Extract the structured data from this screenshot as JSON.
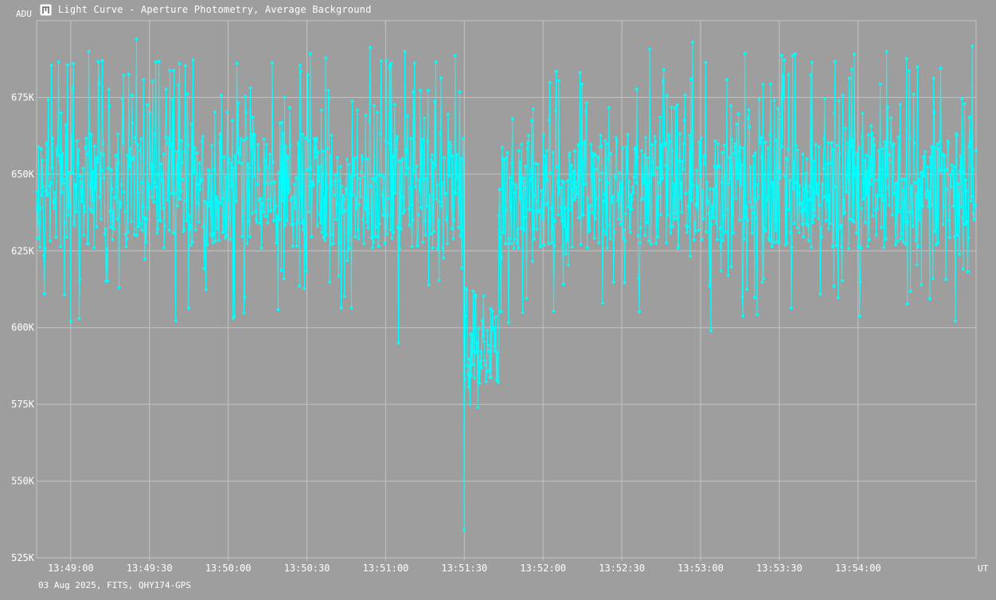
{
  "window": {
    "title": "Light Curve - Aperture Photometry, Average Background",
    "app_icon": "light-curve-icon",
    "footer": "03 Aug 2025, FITS, QHY174-GPS"
  },
  "colors": {
    "background": "#9e9e9e",
    "grid": "#c4c4c4",
    "series": "#00ffff",
    "text": "#ffffff"
  },
  "chart_data": {
    "type": "line",
    "title": "Light Curve - Aperture Photometry, Average Background",
    "ylabel": "ADU",
    "xlabel": "UT",
    "ylim": [
      525000,
      700000
    ],
    "xlim": [
      "13:48:47",
      "13:54:45"
    ],
    "x_ticks": [
      "13:49:00",
      "13:49:30",
      "13:50:00",
      "13:50:30",
      "13:51:00",
      "13:51:30",
      "13:52:00",
      "13:52:30",
      "13:53:00",
      "13:53:30",
      "13:54:00"
    ],
    "y_ticks": [
      "525K",
      "550K",
      "575K",
      "600K",
      "625K",
      "650K",
      "675K"
    ],
    "y_tick_values": [
      525000,
      550000,
      575000,
      600000,
      625000,
      650000,
      675000
    ],
    "grid": true,
    "series": [
      {
        "markers": true,
        "baseline_mean": 645000,
        "scatter_range": [
          600000,
          694000
        ],
        "dip": {
          "start": "13:51:30",
          "end": "13:51:43",
          "min_time": "13:51:30",
          "min_value": 534000,
          "typical_low": 585000
        },
        "notable_points": [
          {
            "x": "13:49:25",
            "y": 694000
          },
          {
            "x": "13:49:00",
            "y": 602000
          },
          {
            "x": "13:51:05",
            "y": 686000
          },
          {
            "x": "13:51:05",
            "y": 595000
          },
          {
            "x": "13:51:30",
            "y": 534000
          },
          {
            "x": "13:51:35",
            "y": 574000
          },
          {
            "x": "13:52:57",
            "y": 693000
          },
          {
            "x": "13:53:04",
            "y": 599000
          },
          {
            "x": "13:54:11",
            "y": 690000
          }
        ]
      }
    ]
  }
}
